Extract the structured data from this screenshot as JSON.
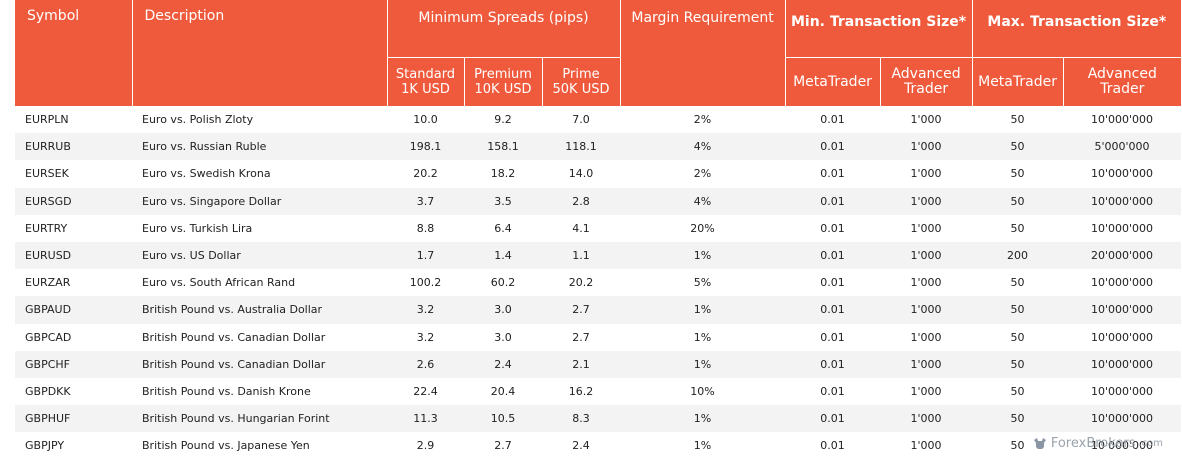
{
  "header": {
    "symbol": "Symbol",
    "description": "Description",
    "min_spreads": "Minimum Spreads (pips)",
    "margin": "Margin Requirement",
    "min_tx": "Min. Transaction Size*",
    "max_tx": "Max. Transaction Size*",
    "standard_1": "Standard",
    "standard_2": "1K USD",
    "premium_1": "Premium",
    "premium_2": "10K USD",
    "prime_1": "Prime",
    "prime_2": "50K USD",
    "mt_min": "MetaTrader",
    "at_min_1": "Advanced",
    "at_min_2": "Trader",
    "mt_max": "MetaTrader",
    "at_max_1": "Advanced",
    "at_max_2": "Trader"
  },
  "rows": [
    {
      "symbol": "EURPLN",
      "description": "Euro vs. Polish Zloty",
      "standard": "10.0",
      "premium": "9.2",
      "prime": "7.0",
      "margin": "2%",
      "min_mt": "0.01",
      "min_at": "1'000",
      "max_mt": "50",
      "max_at": "10'000'000"
    },
    {
      "symbol": "EURRUB",
      "description": "Euro vs. Russian Ruble",
      "standard": "198.1",
      "premium": "158.1",
      "prime": "118.1",
      "margin": "4%",
      "min_mt": "0.01",
      "min_at": "1'000",
      "max_mt": "50",
      "max_at": "5'000'000"
    },
    {
      "symbol": "EURSEK",
      "description": "Euro vs. Swedish Krona",
      "standard": "20.2",
      "premium": "18.2",
      "prime": "14.0",
      "margin": "2%",
      "min_mt": "0.01",
      "min_at": "1'000",
      "max_mt": "50",
      "max_at": "10'000'000"
    },
    {
      "symbol": "EURSGD",
      "description": "Euro vs. Singapore Dollar",
      "standard": "3.7",
      "premium": "3.5",
      "prime": "2.8",
      "margin": "4%",
      "min_mt": "0.01",
      "min_at": "1'000",
      "max_mt": "50",
      "max_at": "10'000'000"
    },
    {
      "symbol": "EURTRY",
      "description": "Euro vs. Turkish Lira",
      "standard": "8.8",
      "premium": "6.4",
      "prime": "4.1",
      "margin": "20%",
      "min_mt": "0.01",
      "min_at": "1'000",
      "max_mt": "50",
      "max_at": "10'000'000"
    },
    {
      "symbol": "EURUSD",
      "description": "Euro vs. US Dollar",
      "standard": "1.7",
      "premium": "1.4",
      "prime": "1.1",
      "margin": "1%",
      "min_mt": "0.01",
      "min_at": "1'000",
      "max_mt": "200",
      "max_at": "20'000'000"
    },
    {
      "symbol": "EURZAR",
      "description": "Euro vs. South African Rand",
      "standard": "100.2",
      "premium": "60.2",
      "prime": "20.2",
      "margin": "5%",
      "min_mt": "0.01",
      "min_at": "1'000",
      "max_mt": "50",
      "max_at": "10'000'000"
    },
    {
      "symbol": "GBPAUD",
      "description": "British Pound vs. Australia Dollar",
      "standard": "3.2",
      "premium": "3.0",
      "prime": "2.7",
      "margin": "1%",
      "min_mt": "0.01",
      "min_at": "1'000",
      "max_mt": "50",
      "max_at": "10'000'000"
    },
    {
      "symbol": "GBPCAD",
      "description": "British Pound vs. Canadian Dollar",
      "standard": "3.2",
      "premium": "3.0",
      "prime": "2.7",
      "margin": "1%",
      "min_mt": "0.01",
      "min_at": "1'000",
      "max_mt": "50",
      "max_at": "10'000'000"
    },
    {
      "symbol": "GBPCHF",
      "description": "British Pound vs. Canadian Dollar",
      "standard": "2.6",
      "premium": "2.4",
      "prime": "2.1",
      "margin": "1%",
      "min_mt": "0.01",
      "min_at": "1'000",
      "max_mt": "50",
      "max_at": "10'000'000"
    },
    {
      "symbol": "GBPDKK",
      "description": "British Pound vs. Danish Krone",
      "standard": "22.4",
      "premium": "20.4",
      "prime": "16.2",
      "margin": "10%",
      "min_mt": "0.01",
      "min_at": "1'000",
      "max_mt": "50",
      "max_at": "10'000'000"
    },
    {
      "symbol": "GBPHUF",
      "description": "British Pound vs. Hungarian Forint",
      "standard": "11.3",
      "premium": "10.5",
      "prime": "8.3",
      "margin": "1%",
      "min_mt": "0.01",
      "min_at": "1'000",
      "max_mt": "50",
      "max_at": "10'000'000"
    },
    {
      "symbol": "GBPJPY",
      "description": "British Pound vs. Japanese Yen",
      "standard": "2.9",
      "premium": "2.7",
      "prime": "2.4",
      "margin": "1%",
      "min_mt": "0.01",
      "min_at": "1'000",
      "max_mt": "50",
      "max_at": "10'000'000"
    }
  ],
  "watermark": {
    "text": "ForexBrokers",
    "suffix": ".com",
    "icon": "bull-logo-icon"
  },
  "colors": {
    "header_bg": "#ef5a3c",
    "stripe": "#f3f3f3"
  }
}
